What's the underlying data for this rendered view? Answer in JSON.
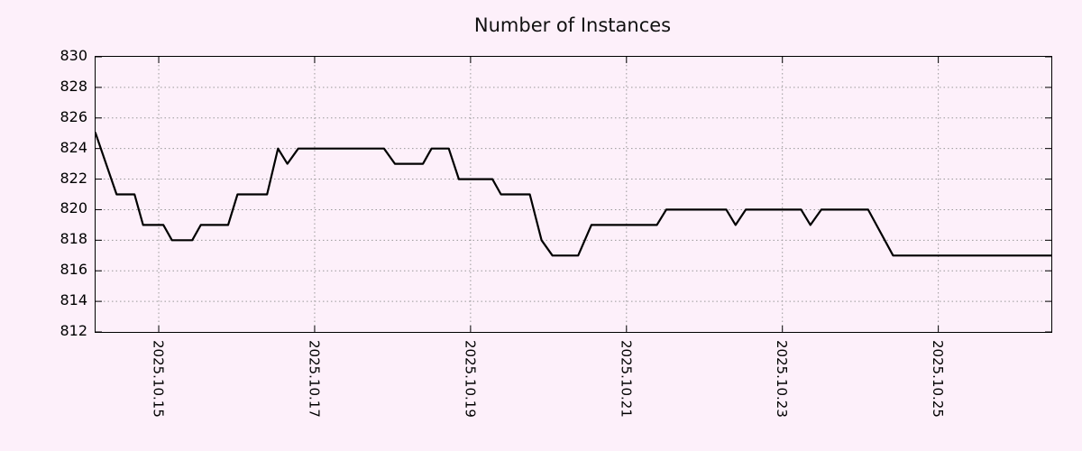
{
  "page": {
    "background": "#fdf0fa"
  },
  "chart_data": {
    "type": "line",
    "title": "Number of Instances",
    "xlabel": "",
    "ylabel": "",
    "grid": true,
    "grid_color": "#999999",
    "legend": "none",
    "xlim": [
      14.19,
      26.45
    ],
    "ylim": [
      812,
      830
    ],
    "y_ticks": [
      812,
      814,
      816,
      818,
      820,
      822,
      824,
      826,
      828,
      830
    ],
    "x_ticks": [
      {
        "pos": 15,
        "label": "2025.10.15"
      },
      {
        "pos": 17,
        "label": "2025.10.17"
      },
      {
        "pos": 19,
        "label": "2025.10.19"
      },
      {
        "pos": 21,
        "label": "2025.10.21"
      },
      {
        "pos": 23,
        "label": "2025.10.23"
      },
      {
        "pos": 25,
        "label": "2025.10.25"
      }
    ],
    "x_unit": "October 2025, decimal day of month",
    "series": [
      {
        "name": "instances",
        "color": "#000000",
        "x": [
          14.19,
          14.46,
          14.69,
          14.8,
          15.06,
          15.17,
          15.43,
          15.54,
          15.89,
          16.01,
          16.39,
          16.53,
          16.65,
          16.79,
          17.89,
          18.03,
          18.39,
          18.5,
          18.72,
          18.85,
          19.28,
          19.39,
          19.76,
          19.91,
          20.05,
          20.38,
          20.55,
          21.39,
          21.51,
          22.28,
          22.4,
          22.53,
          23.24,
          23.36,
          23.5,
          24.1,
          24.42,
          26.45
        ],
        "y": [
          825,
          821,
          821,
          819,
          819,
          818,
          818,
          819,
          819,
          821,
          821,
          824,
          823,
          824,
          824,
          823,
          823,
          824,
          824,
          822,
          822,
          821,
          821,
          818,
          817,
          817,
          819,
          819,
          820,
          820,
          819,
          820,
          820,
          819,
          820,
          820,
          817,
          817
        ]
      }
    ]
  }
}
